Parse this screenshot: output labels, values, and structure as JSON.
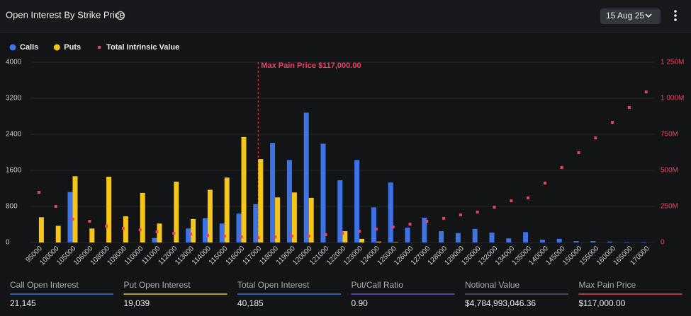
{
  "header": {
    "title": "Open Interest By Strike Price",
    "date": "15 Aug 25"
  },
  "chart_data": {
    "type": "bar",
    "categories": [
      "95000",
      "100000",
      "105000",
      "106000",
      "108000",
      "109000",
      "110000",
      "111000",
      "112000",
      "113000",
      "114000",
      "115000",
      "116000",
      "117000",
      "118000",
      "119000",
      "120000",
      "121000",
      "122000",
      "123000",
      "124000",
      "125000",
      "126000",
      "127000",
      "128000",
      "129000",
      "130000",
      "132000",
      "134000",
      "135000",
      "140000",
      "145000",
      "150000",
      "155000",
      "160000",
      "165000",
      "170000"
    ],
    "series": [
      {
        "name": "Calls",
        "color": "#3d73e6",
        "values": [
          0,
          0,
          1120,
          0,
          0,
          0,
          0,
          100,
          0,
          310,
          540,
          420,
          640,
          850,
          2210,
          1830,
          2880,
          2190,
          1380,
          1830,
          780,
          1330,
          330,
          550,
          250,
          210,
          300,
          220,
          90,
          230,
          60,
          80,
          30,
          30,
          20,
          10,
          10
        ]
      },
      {
        "name": "Puts",
        "color": "#f5c518",
        "values": [
          560,
          370,
          1470,
          310,
          1460,
          580,
          1100,
          420,
          1350,
          520,
          1170,
          1440,
          2340,
          1850,
          1000,
          1110,
          990,
          0,
          250,
          80,
          20,
          10,
          0,
          0,
          0,
          0,
          0,
          0,
          0,
          0,
          0,
          0,
          0,
          0,
          0,
          0,
          0
        ]
      },
      {
        "name": "Total Intrinsic Value",
        "type": "scatter",
        "axis": "y2",
        "color": "#e8416a",
        "values": [
          348,
          250,
          162,
          147,
          113,
          98,
          88,
          74,
          64,
          59,
          49,
          44,
          39,
          34,
          39,
          44,
          44,
          54,
          64,
          78,
          93,
          108,
          127,
          147,
          167,
          191,
          211,
          245,
          289,
          309,
          412,
          520,
          623,
          725,
          833,
          936,
          1044
        ]
      }
    ],
    "ylim": [
      0,
      4000
    ],
    "yticks": [
      0,
      800,
      1600,
      2400,
      3200,
      4000
    ],
    "y2lim": [
      0,
      1250
    ],
    "y2ticks": [
      0,
      {
        "value": 250,
        "label": "250M"
      },
      {
        "value": 500,
        "label": "500M"
      },
      {
        "value": 750,
        "label": "750M"
      },
      {
        "value": 1000,
        "label": "1 000M"
      },
      {
        "value": 1250,
        "label": "1 250M"
      }
    ],
    "grid": true,
    "annotation": {
      "text": "Max Pain Price $117,000.00",
      "x": "117000",
      "color": "#e8416a"
    }
  },
  "stats": [
    {
      "label": "Call Open Interest",
      "value": "21,145",
      "color": "#3d73e6"
    },
    {
      "label": "Put Open Interest",
      "value": "19,039",
      "color": "#f5c518"
    },
    {
      "label": "Total Open Interest",
      "value": "40,185",
      "color": "#3d73e6"
    },
    {
      "label": "Put/Call Ratio",
      "value": "0.90",
      "color": "#6b4fd8"
    },
    {
      "label": "Notional Value",
      "value": "$4,784,993,046.36",
      "color": "#555a66"
    },
    {
      "label": "Max Pain Price",
      "value": "$117,000.00",
      "color": "#e8416a"
    }
  ]
}
